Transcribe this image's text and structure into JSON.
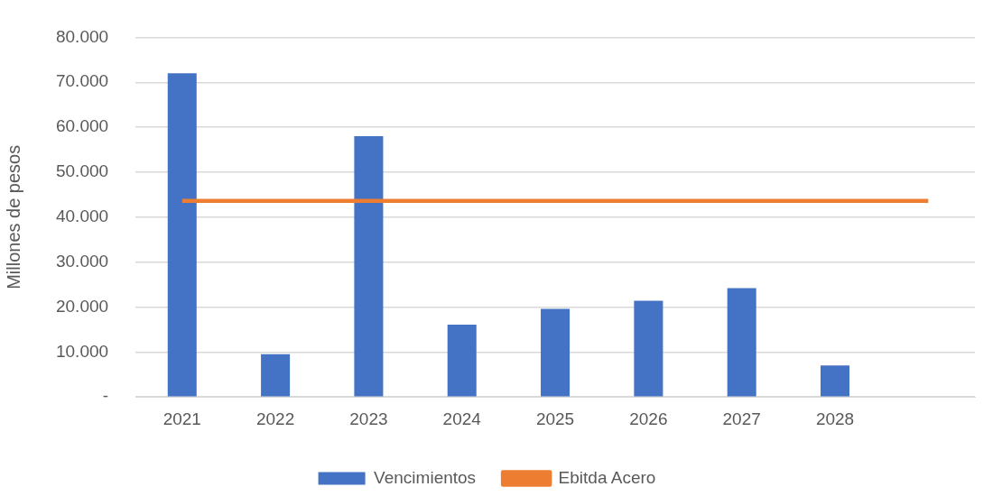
{
  "chart_data": {
    "type": "bar",
    "ylabel": "Millones de pesos",
    "categories": [
      "2021",
      "2022",
      "2023",
      "2024",
      "2025",
      "2026",
      "2027",
      "2028",
      null
    ],
    "series": [
      {
        "name": "Vencimientos",
        "color": "#4472c4",
        "values": [
          72000,
          9500,
          58000,
          16100,
          19600,
          21400,
          24200,
          7000,
          null
        ]
      },
      {
        "name": "Ebitda Acero",
        "type": "line",
        "color": "#ed7d31",
        "marker": "none",
        "values": [
          43600,
          43600,
          43600,
          43600,
          43600,
          43600,
          43600,
          43600,
          43600
        ]
      }
    ],
    "ylim": [
      0,
      80000
    ],
    "yticks": [
      {
        "value": 0,
        "label": "-"
      },
      {
        "value": 10000,
        "label": "10.000"
      },
      {
        "value": 20000,
        "label": "20.000"
      },
      {
        "value": 30000,
        "label": "30.000"
      },
      {
        "value": 40000,
        "label": "40.000"
      },
      {
        "value": 50000,
        "label": "50.000"
      },
      {
        "value": 60000,
        "label": "60.000"
      },
      {
        "value": 70000,
        "label": "70.000"
      },
      {
        "value": 80000,
        "label": "80.000"
      }
    ],
    "grid": "y",
    "legend": "bottom"
  }
}
